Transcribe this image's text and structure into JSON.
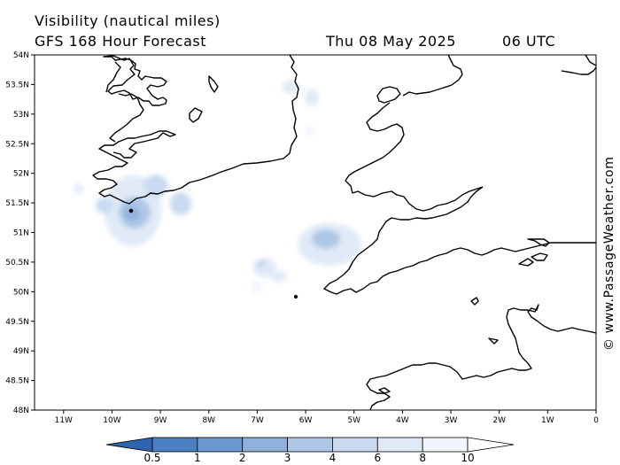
{
  "header": {
    "title": "Visibility (nautical miles)",
    "subtitle": "GFS 168 Hour Forecast",
    "valid_date": "Thu 08 May 2025",
    "valid_hour": "06 UTC"
  },
  "credit": "© www.PassageWeather.com",
  "map": {
    "lat_labels": [
      "54N",
      "53.5N",
      "53N",
      "52.5N",
      "52N",
      "51.5N",
      "51N",
      "50.5N",
      "50N",
      "49.5N",
      "49N",
      "48.5N",
      "48N"
    ],
    "lon_labels": [
      "11W",
      "10W",
      "9W",
      "8W",
      "7W",
      "6W",
      "5W",
      "4W",
      "3W",
      "2W",
      "1W",
      "0"
    ],
    "lon_range": [
      -11.6,
      0
    ],
    "lat_range": [
      48,
      54
    ],
    "coast_color": "#000000"
  },
  "colorbar": {
    "labels": [
      "0.5",
      "1",
      "2",
      "3",
      "4",
      "6",
      "8",
      "10"
    ],
    "colors": [
      "#4a7fc2",
      "#6b98cf",
      "#8fb1db",
      "#aec7e6",
      "#c9daf0",
      "#e0eaf7",
      "#f2f6fc"
    ]
  }
}
